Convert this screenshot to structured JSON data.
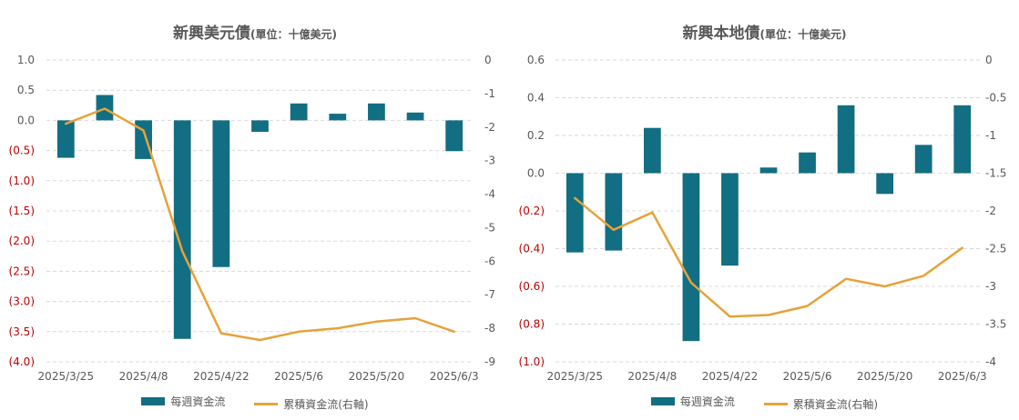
{
  "colors": {
    "bar": "#126e82",
    "line": "#e6a23a",
    "negative_tick": "#c00000",
    "tick": "#595959",
    "grid": "#d9d9d9"
  },
  "chart_data": [
    {
      "type": "bar",
      "title": "新興美元債",
      "title_unit": "(單位：十億美元)",
      "x_tick_labels": [
        "2025/3/25",
        "2025/4/8",
        "2025/4/22",
        "2025/5/6",
        "2025/5/20",
        "2025/6/3"
      ],
      "left_axis": {
        "ylim": [
          -4.0,
          1.0
        ],
        "ticks": [
          "1.0",
          "0.5",
          "0.0",
          "(0.5)",
          "(1.0)",
          "(1.5)",
          "(2.0)",
          "(2.5)",
          "(3.0)",
          "(3.5)",
          "(4.0)"
        ]
      },
      "right_axis": {
        "ylim": [
          -9,
          0
        ],
        "ticks": [
          "0",
          "-1",
          "-2",
          "-3",
          "-4",
          "-5",
          "-6",
          "-7",
          "-8",
          "-9"
        ]
      },
      "grid": true,
      "legend_position": "bottom",
      "series": [
        {
          "name": "每週資金流",
          "type": "bar",
          "axis": "left",
          "values": [
            -0.62,
            0.42,
            -0.64,
            -3.62,
            -2.43,
            -0.19,
            0.28,
            0.11,
            0.28,
            0.13,
            -0.51
          ]
        },
        {
          "name": "累積資金流(右軸)",
          "type": "line",
          "axis": "right",
          "values": [
            -1.9,
            -1.45,
            -2.1,
            -5.7,
            -8.15,
            -8.35,
            -8.1,
            -8.0,
            -7.8,
            -7.7,
            -8.1
          ]
        }
      ]
    },
    {
      "type": "bar",
      "title": "新興本地債",
      "title_unit": "(單位：十億美元)",
      "x_tick_labels": [
        "2025/3/25",
        "2025/4/8",
        "2025/4/22",
        "2025/5/6",
        "2025/5/20",
        "2025/6/3"
      ],
      "left_axis": {
        "ylim": [
          -1.0,
          0.6
        ],
        "ticks": [
          "0.6",
          "0.4",
          "0.2",
          "0.0",
          "(0.2)",
          "(0.4)",
          "(0.6)",
          "(0.8)",
          "(1.0)"
        ]
      },
      "right_axis": {
        "ylim": [
          -4,
          0
        ],
        "ticks": [
          "0",
          "-0.5",
          "-1",
          "-1.5",
          "-2",
          "-2.5",
          "-3",
          "-3.5",
          "-4"
        ]
      },
      "grid": true,
      "legend_position": "bottom",
      "series": [
        {
          "name": "每週資金流",
          "type": "bar",
          "axis": "left",
          "values": [
            -0.42,
            -0.41,
            0.24,
            -0.89,
            -0.49,
            0.03,
            0.11,
            0.36,
            -0.11,
            0.15,
            0.36
          ]
        },
        {
          "name": "累積資金流(右軸)",
          "type": "line",
          "axis": "right",
          "values": [
            -1.83,
            -2.25,
            -2.02,
            -2.95,
            -3.4,
            -3.38,
            -3.26,
            -2.9,
            -3.0,
            -2.86,
            -2.49
          ]
        }
      ]
    }
  ]
}
